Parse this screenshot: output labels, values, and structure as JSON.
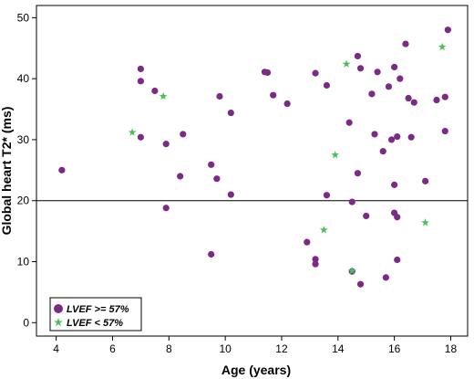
{
  "chart_data": {
    "type": "scatter",
    "xlabel": "Age (years)",
    "ylabel": "Global heart T2* (ms)",
    "xlim": [
      3.3,
      18.6
    ],
    "ylim": [
      -2.2,
      52
    ],
    "xticks": [
      4,
      6,
      8,
      10,
      12,
      14,
      16,
      18
    ],
    "yticks": [
      0,
      10,
      20,
      30,
      40,
      50
    ],
    "reference_line_y": 20,
    "grid": false,
    "legend_position": "bottom-left",
    "series": [
      {
        "name": "LVEF >= 57%",
        "marker": "circle",
        "color": "#7b2a86",
        "points": [
          [
            4.2,
            25.0
          ],
          [
            7.0,
            41.6
          ],
          [
            7.0,
            39.6
          ],
          [
            7.0,
            30.4
          ],
          [
            7.5,
            38.0
          ],
          [
            7.9,
            29.3
          ],
          [
            7.9,
            18.8
          ],
          [
            8.4,
            24.0
          ],
          [
            8.5,
            30.9
          ],
          [
            9.5,
            25.9
          ],
          [
            9.5,
            11.2
          ],
          [
            9.7,
            23.6
          ],
          [
            9.8,
            37.1
          ],
          [
            10.2,
            34.4
          ],
          [
            10.2,
            21.0
          ],
          [
            11.4,
            41.1
          ],
          [
            11.5,
            41.0
          ],
          [
            11.7,
            37.3
          ],
          [
            12.2,
            35.9
          ],
          [
            12.9,
            13.2
          ],
          [
            13.2,
            40.9
          ],
          [
            13.2,
            10.4
          ],
          [
            13.2,
            9.6
          ],
          [
            13.6,
            38.9
          ],
          [
            13.6,
            20.9
          ],
          [
            14.4,
            32.8
          ],
          [
            14.5,
            19.8
          ],
          [
            14.5,
            8.4
          ],
          [
            14.7,
            43.7
          ],
          [
            14.7,
            24.5
          ],
          [
            14.8,
            41.7
          ],
          [
            14.8,
            6.3
          ],
          [
            15.0,
            17.5
          ],
          [
            15.2,
            37.5
          ],
          [
            15.3,
            30.9
          ],
          [
            15.4,
            41.1
          ],
          [
            15.6,
            28.1
          ],
          [
            15.7,
            7.4
          ],
          [
            15.8,
            38.7
          ],
          [
            15.9,
            30.0
          ],
          [
            16.0,
            41.9
          ],
          [
            16.0,
            22.6
          ],
          [
            16.0,
            18.0
          ],
          [
            16.1,
            17.3
          ],
          [
            16.1,
            30.5
          ],
          [
            16.1,
            10.3
          ],
          [
            16.2,
            40.0
          ],
          [
            16.4,
            45.7
          ],
          [
            16.5,
            36.8
          ],
          [
            16.6,
            30.4
          ],
          [
            16.7,
            36.1
          ],
          [
            17.1,
            23.2
          ],
          [
            17.5,
            36.5
          ],
          [
            17.8,
            37.0
          ],
          [
            17.8,
            31.4
          ],
          [
            17.9,
            48.0
          ]
        ]
      },
      {
        "name": "LVEF < 57%",
        "marker": "star",
        "color": "#4cbf5a",
        "points": [
          [
            6.7,
            31.2
          ],
          [
            7.8,
            37.1
          ],
          [
            13.5,
            15.2
          ],
          [
            13.9,
            27.5
          ],
          [
            14.3,
            42.4
          ],
          [
            14.5,
            8.5
          ],
          [
            17.1,
            16.4
          ],
          [
            17.7,
            45.2
          ]
        ]
      }
    ],
    "legend": {
      "entries": [
        {
          "label": "LVEF >= 57%",
          "marker": "circle",
          "color": "#7b2a86"
        },
        {
          "label": "LVEF < 57%",
          "marker": "star",
          "color": "#4cbf5a"
        }
      ]
    }
  }
}
